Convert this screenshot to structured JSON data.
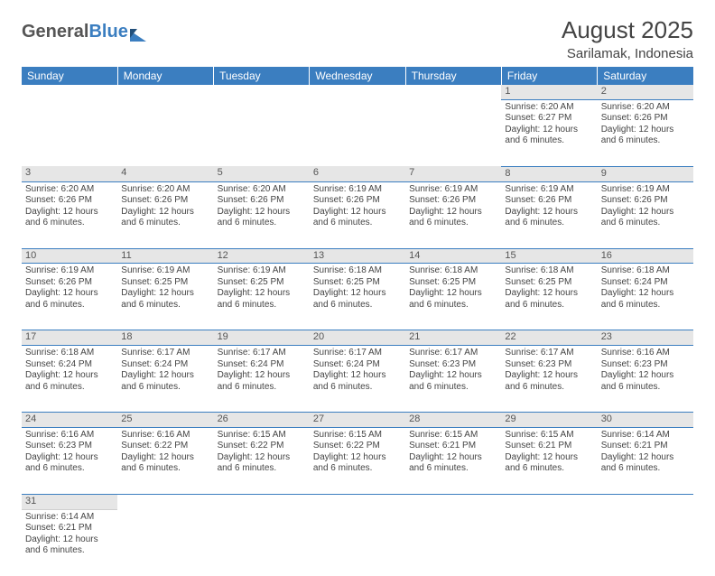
{
  "brand": {
    "part1": "General",
    "part2": "Blue"
  },
  "title": "August 2025",
  "location": "Sarilamak, Indonesia",
  "colors": {
    "header_bg": "#3b7ec0",
    "header_text": "#ffffff",
    "daynum_bg": "#e6e6e6",
    "text": "#444444",
    "rule": "#3b7ec0",
    "page_bg": "#ffffff"
  },
  "fonts": {
    "header_size_pt": 12,
    "body_size_pt": 10,
    "title_size_pt": 26,
    "location_size_pt": 15
  },
  "dows": [
    "Sunday",
    "Monday",
    "Tuesday",
    "Wednesday",
    "Thursday",
    "Friday",
    "Saturday"
  ],
  "weeks": [
    [
      null,
      null,
      null,
      null,
      null,
      {
        "n": "1",
        "sr": "Sunrise: 6:20 AM",
        "ss": "Sunset: 6:27 PM",
        "dl": "Daylight: 12 hours and 6 minutes."
      },
      {
        "n": "2",
        "sr": "Sunrise: 6:20 AM",
        "ss": "Sunset: 6:26 PM",
        "dl": "Daylight: 12 hours and 6 minutes."
      }
    ],
    [
      {
        "n": "3",
        "sr": "Sunrise: 6:20 AM",
        "ss": "Sunset: 6:26 PM",
        "dl": "Daylight: 12 hours and 6 minutes."
      },
      {
        "n": "4",
        "sr": "Sunrise: 6:20 AM",
        "ss": "Sunset: 6:26 PM",
        "dl": "Daylight: 12 hours and 6 minutes."
      },
      {
        "n": "5",
        "sr": "Sunrise: 6:20 AM",
        "ss": "Sunset: 6:26 PM",
        "dl": "Daylight: 12 hours and 6 minutes."
      },
      {
        "n": "6",
        "sr": "Sunrise: 6:19 AM",
        "ss": "Sunset: 6:26 PM",
        "dl": "Daylight: 12 hours and 6 minutes."
      },
      {
        "n": "7",
        "sr": "Sunrise: 6:19 AM",
        "ss": "Sunset: 6:26 PM",
        "dl": "Daylight: 12 hours and 6 minutes."
      },
      {
        "n": "8",
        "sr": "Sunrise: 6:19 AM",
        "ss": "Sunset: 6:26 PM",
        "dl": "Daylight: 12 hours and 6 minutes."
      },
      {
        "n": "9",
        "sr": "Sunrise: 6:19 AM",
        "ss": "Sunset: 6:26 PM",
        "dl": "Daylight: 12 hours and 6 minutes."
      }
    ],
    [
      {
        "n": "10",
        "sr": "Sunrise: 6:19 AM",
        "ss": "Sunset: 6:26 PM",
        "dl": "Daylight: 12 hours and 6 minutes."
      },
      {
        "n": "11",
        "sr": "Sunrise: 6:19 AM",
        "ss": "Sunset: 6:25 PM",
        "dl": "Daylight: 12 hours and 6 minutes."
      },
      {
        "n": "12",
        "sr": "Sunrise: 6:19 AM",
        "ss": "Sunset: 6:25 PM",
        "dl": "Daylight: 12 hours and 6 minutes."
      },
      {
        "n": "13",
        "sr": "Sunrise: 6:18 AM",
        "ss": "Sunset: 6:25 PM",
        "dl": "Daylight: 12 hours and 6 minutes."
      },
      {
        "n": "14",
        "sr": "Sunrise: 6:18 AM",
        "ss": "Sunset: 6:25 PM",
        "dl": "Daylight: 12 hours and 6 minutes."
      },
      {
        "n": "15",
        "sr": "Sunrise: 6:18 AM",
        "ss": "Sunset: 6:25 PM",
        "dl": "Daylight: 12 hours and 6 minutes."
      },
      {
        "n": "16",
        "sr": "Sunrise: 6:18 AM",
        "ss": "Sunset: 6:24 PM",
        "dl": "Daylight: 12 hours and 6 minutes."
      }
    ],
    [
      {
        "n": "17",
        "sr": "Sunrise: 6:18 AM",
        "ss": "Sunset: 6:24 PM",
        "dl": "Daylight: 12 hours and 6 minutes."
      },
      {
        "n": "18",
        "sr": "Sunrise: 6:17 AM",
        "ss": "Sunset: 6:24 PM",
        "dl": "Daylight: 12 hours and 6 minutes."
      },
      {
        "n": "19",
        "sr": "Sunrise: 6:17 AM",
        "ss": "Sunset: 6:24 PM",
        "dl": "Daylight: 12 hours and 6 minutes."
      },
      {
        "n": "20",
        "sr": "Sunrise: 6:17 AM",
        "ss": "Sunset: 6:24 PM",
        "dl": "Daylight: 12 hours and 6 minutes."
      },
      {
        "n": "21",
        "sr": "Sunrise: 6:17 AM",
        "ss": "Sunset: 6:23 PM",
        "dl": "Daylight: 12 hours and 6 minutes."
      },
      {
        "n": "22",
        "sr": "Sunrise: 6:17 AM",
        "ss": "Sunset: 6:23 PM",
        "dl": "Daylight: 12 hours and 6 minutes."
      },
      {
        "n": "23",
        "sr": "Sunrise: 6:16 AM",
        "ss": "Sunset: 6:23 PM",
        "dl": "Daylight: 12 hours and 6 minutes."
      }
    ],
    [
      {
        "n": "24",
        "sr": "Sunrise: 6:16 AM",
        "ss": "Sunset: 6:23 PM",
        "dl": "Daylight: 12 hours and 6 minutes."
      },
      {
        "n": "25",
        "sr": "Sunrise: 6:16 AM",
        "ss": "Sunset: 6:22 PM",
        "dl": "Daylight: 12 hours and 6 minutes."
      },
      {
        "n": "26",
        "sr": "Sunrise: 6:15 AM",
        "ss": "Sunset: 6:22 PM",
        "dl": "Daylight: 12 hours and 6 minutes."
      },
      {
        "n": "27",
        "sr": "Sunrise: 6:15 AM",
        "ss": "Sunset: 6:22 PM",
        "dl": "Daylight: 12 hours and 6 minutes."
      },
      {
        "n": "28",
        "sr": "Sunrise: 6:15 AM",
        "ss": "Sunset: 6:21 PM",
        "dl": "Daylight: 12 hours and 6 minutes."
      },
      {
        "n": "29",
        "sr": "Sunrise: 6:15 AM",
        "ss": "Sunset: 6:21 PM",
        "dl": "Daylight: 12 hours and 6 minutes."
      },
      {
        "n": "30",
        "sr": "Sunrise: 6:14 AM",
        "ss": "Sunset: 6:21 PM",
        "dl": "Daylight: 12 hours and 6 minutes."
      }
    ],
    [
      {
        "n": "31",
        "sr": "Sunrise: 6:14 AM",
        "ss": "Sunset: 6:21 PM",
        "dl": "Daylight: 12 hours and 6 minutes."
      },
      null,
      null,
      null,
      null,
      null,
      null
    ]
  ]
}
